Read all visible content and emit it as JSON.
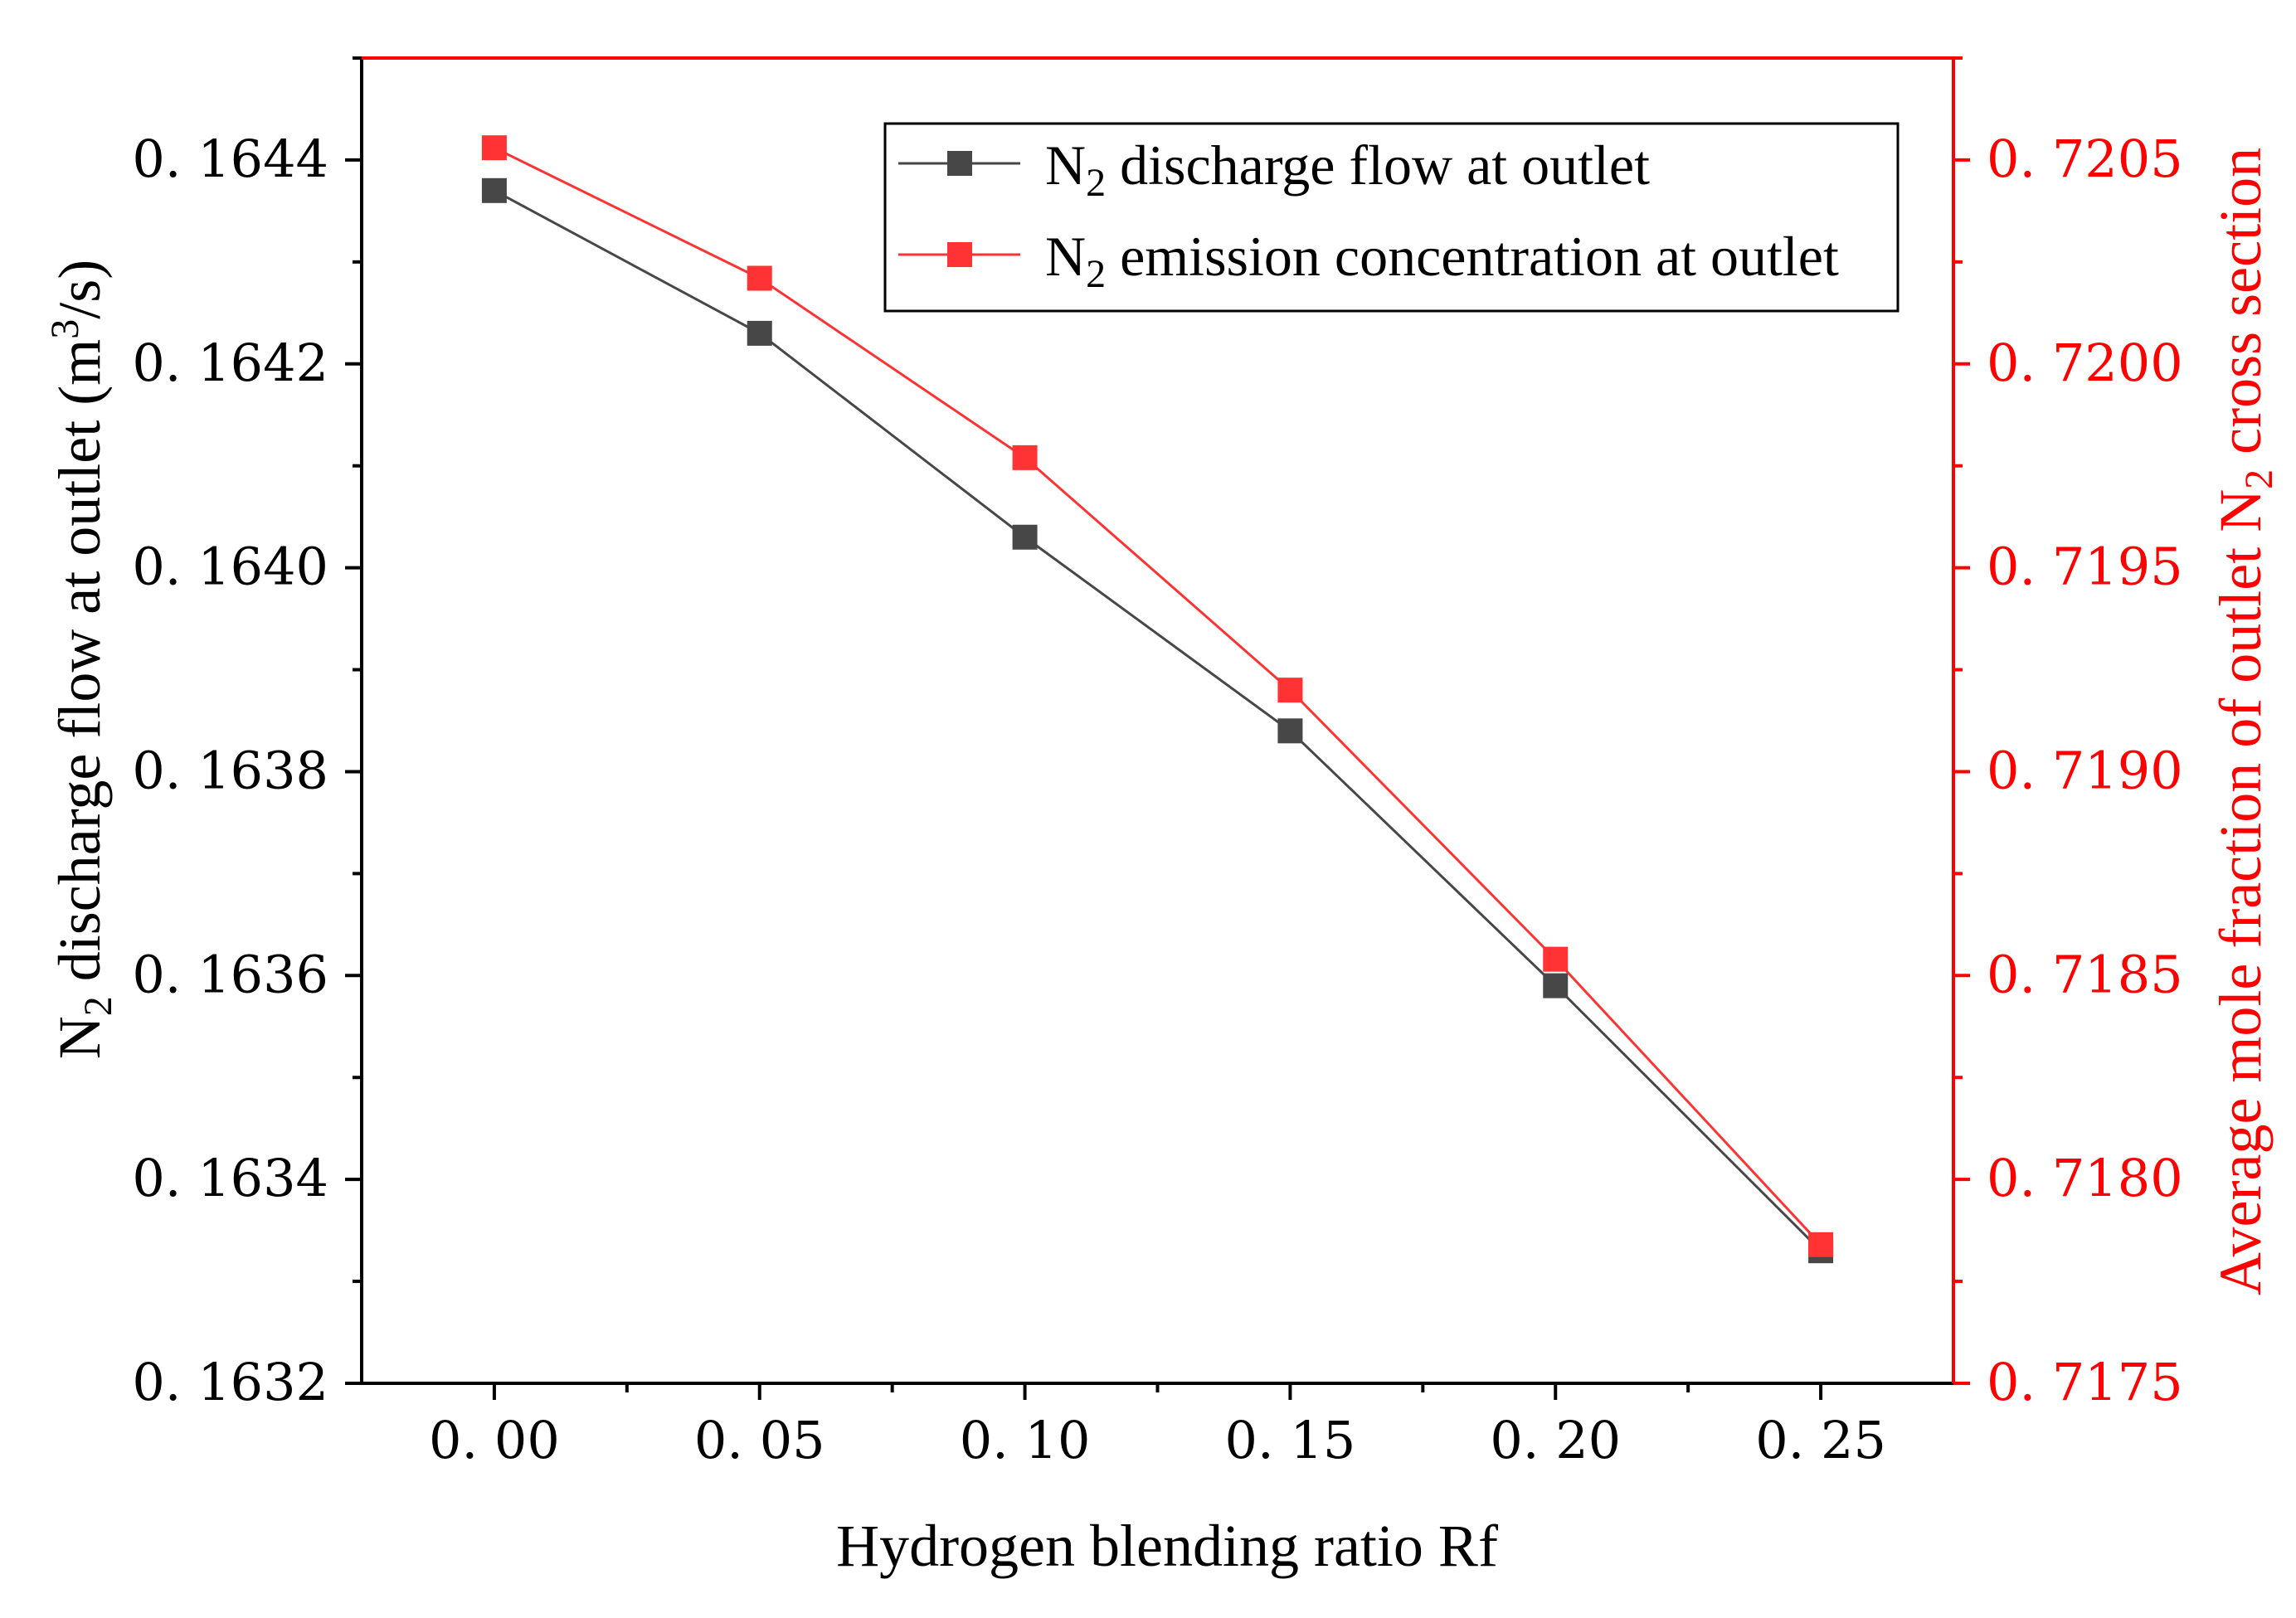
{
  "colors": {
    "left_axis": "#000000",
    "right_axis": "#ff0000",
    "series1": "#474747",
    "series2": "#ff3333"
  },
  "chart_data": {
    "type": "line",
    "title": "",
    "x": [
      0.0,
      0.05,
      0.1,
      0.15,
      0.2,
      0.25
    ],
    "x_tick_labels": [
      "0. 00",
      "0. 05",
      "0. 10",
      "0. 15",
      "0. 20",
      "0. 25"
    ],
    "xlim": [
      -0.025,
      0.275
    ],
    "xlabel": "Hydrogen blending ratio Rf",
    "y_left": {
      "label_parts": [
        "N",
        "2",
        " discharge flow at outlet (m",
        "3",
        "/s)"
      ],
      "ylim": [
        0.1632,
        0.1645
      ],
      "ticks": [
        0.1632,
        0.1634,
        0.1636,
        0.1638,
        0.164,
        0.1642,
        0.1644
      ],
      "tick_labels": [
        "0. 1632",
        "0. 1634",
        "0. 1636",
        "0. 1638",
        "0. 1640",
        "0. 1642",
        "0. 1644"
      ]
    },
    "y_right": {
      "label_parts": [
        "Average mole fraction of outlet N",
        "2",
        " cross section"
      ],
      "ylim": [
        0.7175,
        0.72075
      ],
      "ticks": [
        0.7175,
        0.718,
        0.7185,
        0.719,
        0.7195,
        0.72,
        0.7205
      ],
      "tick_labels": [
        "0. 7175",
        "0. 7180",
        "0. 7185",
        "0. 7190",
        "0. 7195",
        "0. 7200",
        "0. 7205"
      ]
    },
    "series": [
      {
        "name": "N2 discharge flow at outlet",
        "legend_parts": [
          "N",
          "2",
          " discharge flow at outlet"
        ],
        "axis": "left",
        "marker": "square",
        "values": [
          0.16437,
          0.16423,
          0.16403,
          0.16384,
          0.16359,
          0.16333
        ]
      },
      {
        "name": "N2 emission concentration at outlet",
        "legend_parts": [
          "N",
          "2",
          " emission concentration at outlet"
        ],
        "axis": "right",
        "marker": "square",
        "values": [
          0.72053,
          0.72021,
          0.71977,
          0.7192,
          0.71854,
          0.71784
        ]
      }
    ],
    "legend_position": "top-right",
    "grid": false
  }
}
